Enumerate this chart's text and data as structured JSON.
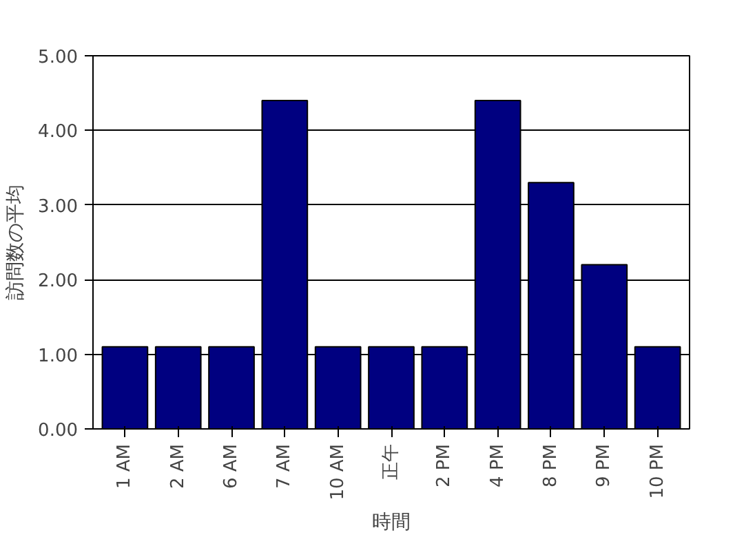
{
  "chart_data": {
    "type": "bar",
    "categories": [
      "1 AM",
      "2 AM",
      "6 AM",
      "7 AM",
      "10 AM",
      "正午",
      "2 PM",
      "4 PM",
      "8 PM",
      "9 PM",
      "10 PM"
    ],
    "values": [
      1.1,
      1.1,
      1.1,
      4.4,
      1.1,
      1.1,
      1.1,
      4.4,
      3.3,
      2.2,
      1.1
    ],
    "color": "#000080",
    "xlabel": "時間",
    "ylabel": "訪問数の平均",
    "ylim": [
      0,
      5
    ],
    "yticks": [
      {
        "value": 0,
        "label": "0.00"
      },
      {
        "value": 1,
        "label": "1.00"
      },
      {
        "value": 2,
        "label": "2.00"
      },
      {
        "value": 3,
        "label": "3.00"
      },
      {
        "value": 4,
        "label": "4.00"
      },
      {
        "value": 5,
        "label": "5.00"
      }
    ],
    "grid": "y"
  }
}
